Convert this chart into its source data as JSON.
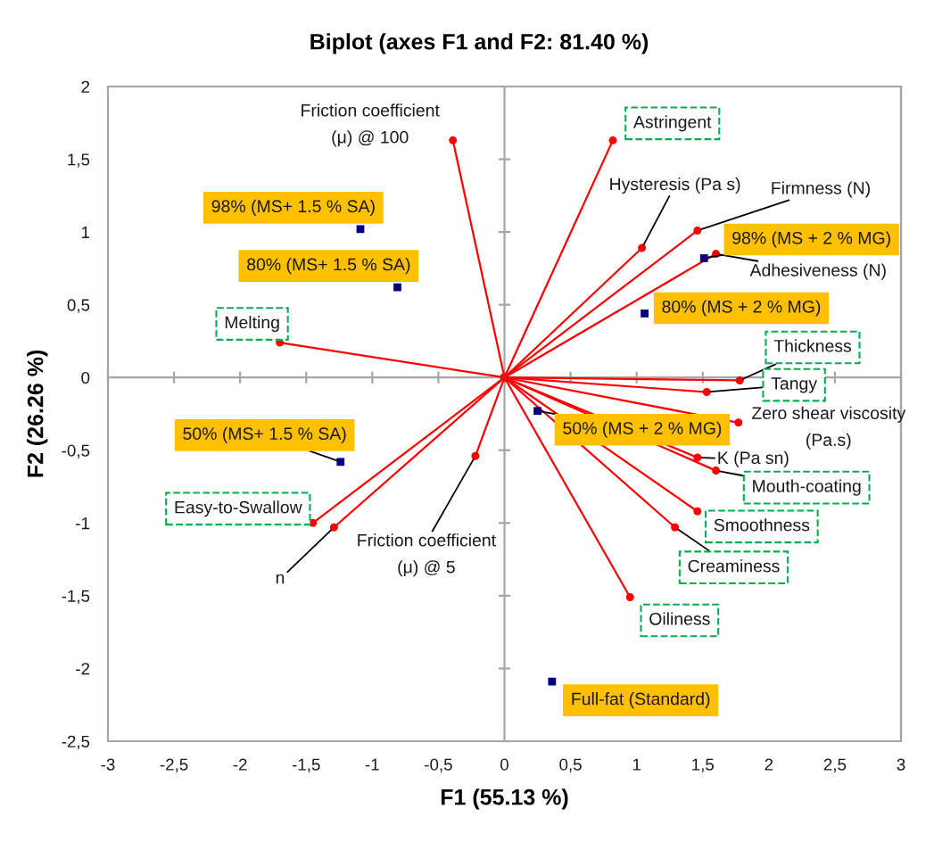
{
  "chart_data": {
    "type": "scatter",
    "title": "Biplot (axes F1 and F2: 81.40 %)",
    "xlabel": "F1 (55.13 %)",
    "ylabel": "F2 (26.26 %)",
    "xlim": [
      -3,
      3
    ],
    "ylim": [
      -2.5,
      2
    ],
    "xticks": [
      -3,
      {
        "value": -2.5,
        "label": "-2,5"
      },
      -2,
      {
        "value": -1.5,
        "label": "-1,5"
      },
      -1,
      {
        "value": -0.5,
        "label": "-0,5"
      },
      0,
      {
        "value": 0.5,
        "label": "0,5"
      },
      1,
      {
        "value": 1.5,
        "label": "1,5"
      },
      2,
      {
        "value": 2.5,
        "label": "2,5"
      },
      3
    ],
    "yticks": [
      {
        "value": -2.5,
        "label": "-2,5"
      },
      -2,
      {
        "value": -1.5,
        "label": "-1,5"
      },
      -1,
      {
        "value": -0.5,
        "label": "-0,5"
      },
      0,
      {
        "value": 0.5,
        "label": "0,5"
      },
      1,
      {
        "value": 1.5,
        "label": "1,5"
      },
      2
    ],
    "marker": "circle",
    "series": [
      {
        "type": "line",
        "name": "Friction coefficient\n(μ) @ 100",
        "color": "#ff0000",
        "x": [
          0,
          -0.39
        ],
        "values": [
          0,
          1.63
        ]
      },
      {
        "type": "line",
        "name": "Astringent",
        "color": "#ff0000",
        "x": [
          0,
          0.82
        ],
        "values": [
          0,
          1.63
        ]
      },
      {
        "type": "line",
        "name": "Hysteresis (Pa s)",
        "color": "#ff0000",
        "x": [
          0,
          1.04
        ],
        "values": [
          0,
          0.89
        ]
      },
      {
        "type": "line",
        "name": "Firmness (N)",
        "color": "#ff0000",
        "x": [
          0,
          1.46
        ],
        "values": [
          0,
          1.01
        ]
      },
      {
        "type": "line",
        "name": "Adhesiveness (N)",
        "color": "#ff0000",
        "x": [
          0,
          1.6
        ],
        "values": [
          0,
          0.85
        ]
      },
      {
        "type": "line",
        "name": "Melting",
        "color": "#ff0000",
        "x": [
          0,
          -1.7
        ],
        "values": [
          0,
          0.24
        ]
      },
      {
        "type": "line",
        "name": "Thickness",
        "color": "#ff0000",
        "x": [
          0,
          1.78
        ],
        "values": [
          0,
          -0.02
        ]
      },
      {
        "type": "line",
        "name": "Tangy",
        "color": "#ff0000",
        "x": [
          0,
          1.53
        ],
        "values": [
          0,
          -0.1
        ]
      },
      {
        "type": "line",
        "name": "Zero shear viscosity\n(Pa.s)",
        "color": "#ff0000",
        "x": [
          0,
          1.77
        ],
        "values": [
          0,
          -0.31
        ]
      },
      {
        "type": "line",
        "name": "K (Pa sn)",
        "color": "#ff0000",
        "x": [
          0,
          1.46
        ],
        "values": [
          0,
          -0.55
        ]
      },
      {
        "type": "line",
        "name": "Mouth-coating",
        "color": "#ff0000",
        "x": [
          0,
          1.6
        ],
        "values": [
          0,
          -0.64
        ]
      },
      {
        "type": "line",
        "name": "Smoothness",
        "color": "#ff0000",
        "x": [
          0,
          1.46
        ],
        "values": [
          0,
          -0.92
        ]
      },
      {
        "type": "line",
        "name": "Creaminess",
        "color": "#ff0000",
        "x": [
          0,
          1.29
        ],
        "values": [
          0,
          -1.03
        ]
      },
      {
        "type": "line",
        "name": "Oiliness",
        "color": "#ff0000",
        "x": [
          0,
          0.95
        ],
        "values": [
          0,
          -1.51
        ]
      },
      {
        "type": "line",
        "name": "Friction coefficient\n(μ) @ 5",
        "color": "#ff0000",
        "x": [
          0,
          -0.22
        ],
        "values": [
          0,
          -0.54
        ]
      },
      {
        "type": "line",
        "name": "n",
        "color": "#ff0000",
        "x": [
          0,
          -1.29
        ],
        "values": [
          0,
          -1.03
        ]
      },
      {
        "type": "line",
        "name": "Easy-to-Swallow",
        "color": "#ff0000",
        "x": [
          0,
          -1.45
        ],
        "values": [
          0,
          -1.0
        ]
      },
      {
        "marker": "square",
        "name": "98% (MS+ 1.5 % SA)",
        "color": "#000080",
        "x": [
          -1.09
        ],
        "values": [
          1.02
        ]
      },
      {
        "marker": "square",
        "name": "80% (MS+ 1.5 % SA)",
        "color": "#000080",
        "x": [
          -0.81
        ],
        "values": [
          0.62
        ]
      },
      {
        "marker": "square",
        "name": "98% (MS + 2 % MG)",
        "color": "#000080",
        "x": [
          1.51
        ],
        "values": [
          0.82
        ]
      },
      {
        "marker": "square",
        "name": "80% (MS + 2 % MG)",
        "color": "#000080",
        "x": [
          1.06
        ],
        "values": [
          0.44
        ]
      },
      {
        "marker": "square",
        "name": "50% (MS + 2 % MG)",
        "color": "#000080",
        "x": [
          0.25
        ],
        "values": [
          -0.23
        ]
      },
      {
        "marker": "square",
        "name": "50% (MS+ 1.5 % SA)",
        "color": "#000080",
        "x": [
          -1.24
        ],
        "values": [
          -0.58
        ]
      },
      {
        "marker": "square",
        "name": "Full-fat (Standard)",
        "color": "#000080",
        "x": [
          0.36
        ],
        "values": [
          -2.09
        ]
      }
    ]
  }
}
